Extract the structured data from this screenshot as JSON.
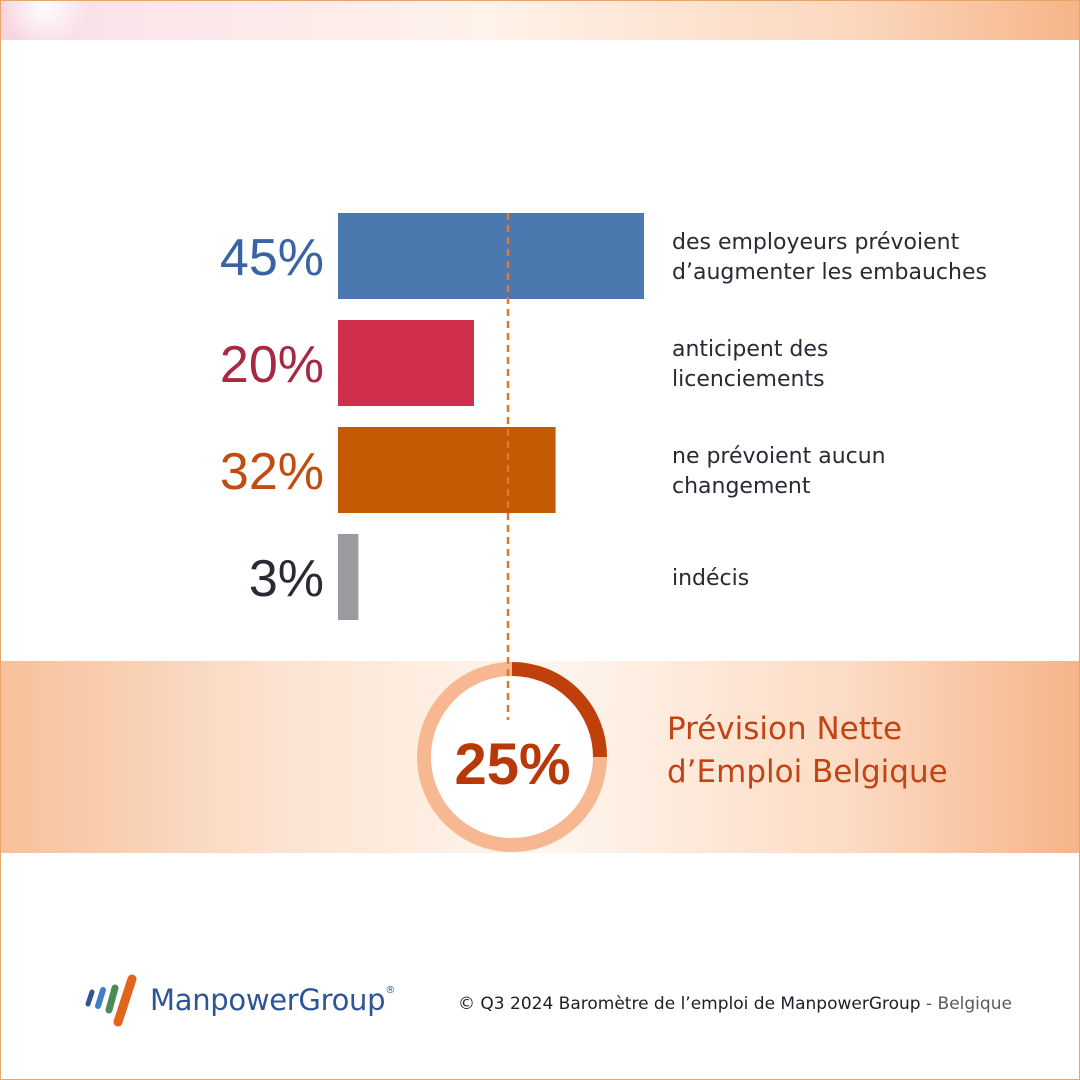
{
  "chart_data": {
    "type": "bar",
    "orientation": "horizontal",
    "xlim": [
      0,
      100
    ],
    "bars": [
      {
        "value": 45,
        "value_label": "45%",
        "label_lines": [
          "des employeurs prévoient",
          "d’augmenter les embauches"
        ],
        "color": "#4a78af"
      },
      {
        "value": 20,
        "value_label": "20%",
        "label_lines": [
          "anticipent des",
          "licenciements"
        ],
        "color": "#cf2e4d"
      },
      {
        "value": 32,
        "value_label": "32%",
        "label_lines": [
          "ne prévoient aucun",
          "changement"
        ],
        "color": "#c45a03"
      },
      {
        "value": 3,
        "value_label": "3%",
        "label_lines": [
          "indécis"
        ],
        "color": "#9a9a9f"
      }
    ],
    "value_label_colors": [
      "#3a63a4",
      "#a52a42",
      "#c14c10",
      "#2a2a35"
    ],
    "net_employment_outlook": {
      "value": 25,
      "value_label": "25%",
      "title_lines": [
        "Prévision Nette",
        "d’Emploi Belgique"
      ],
      "marker_value": 25
    }
  },
  "footer": {
    "brand": "ManpowerGroup",
    "trademark": "®",
    "copyright": "© Q3 2024 Baromètre de l’emploi de ManpowerGroup",
    "separator": " - ",
    "region": "Belgique"
  },
  "colors": {
    "accent_orange": "#c14514",
    "ring_light": "#f6b791",
    "ring_dark": "#c0400b",
    "brand_blue": "#2f5597"
  }
}
